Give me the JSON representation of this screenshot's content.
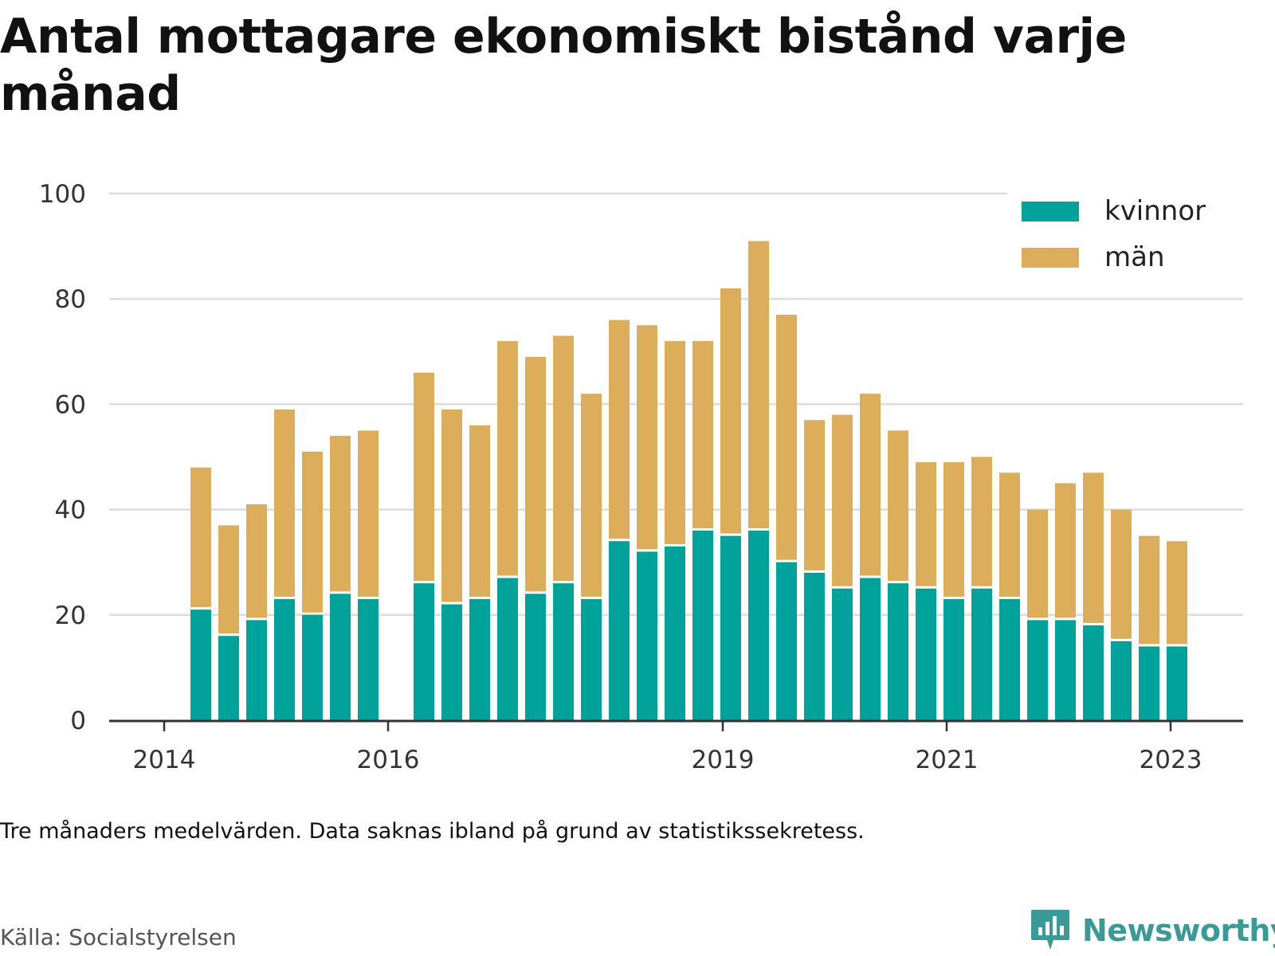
{
  "title": "Antal mottagare ekonomiskt bistånd varje månad",
  "note": "Tre månaders medelvärden. Data saknas ibland på grund av statistikssekretess.",
  "source": "Källa: Socialstyrelsen",
  "brand": "Newsworthy",
  "colors": {
    "kvinnor": "#00a29a",
    "man": "#dcad5b",
    "grid": "#dddddd",
    "axis": "#333333",
    "brand": "#3a9a96"
  },
  "chart_data": {
    "type": "bar",
    "stacked": true,
    "x_tick_labels": [
      "2014",
      "2016",
      "2019",
      "2021",
      "2023"
    ],
    "y_ticks": [
      0,
      20,
      40,
      60,
      80,
      100
    ],
    "ylim": [
      0,
      100
    ],
    "grid": true,
    "legend_position": "top-right",
    "series": [
      {
        "name": "kvinnor",
        "values": [
          21,
          16,
          19,
          23,
          20,
          24,
          23,
          null,
          26,
          22,
          23,
          27,
          24,
          26,
          23,
          34,
          32,
          33,
          36,
          35,
          36,
          30,
          28,
          25,
          27,
          26,
          25,
          23,
          25,
          23,
          19,
          19,
          18,
          15,
          14,
          14
        ]
      },
      {
        "name": "män",
        "values": [
          27,
          21,
          22,
          36,
          31,
          30,
          32,
          null,
          40,
          37,
          33,
          45,
          45,
          47,
          39,
          42,
          43,
          39,
          36,
          47,
          55,
          47,
          29,
          33,
          35,
          29,
          24,
          26,
          25,
          24,
          21,
          26,
          29,
          25,
          21,
          20
        ]
      }
    ]
  }
}
